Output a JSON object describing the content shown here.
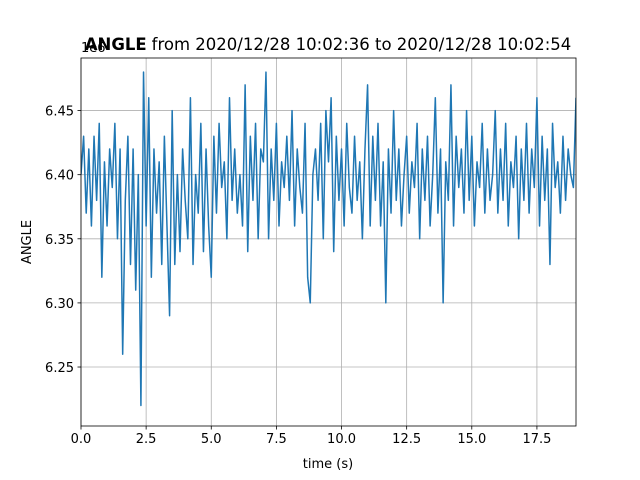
{
  "chart_data": {
    "type": "line",
    "title": "ANGLE",
    "title_suffix": "from 2020/12/28 10:02:36 to 2020/12/28 10:02:54",
    "y_offset_label": "1e6",
    "x_label": "time (s)",
    "y_label": "ANGLE",
    "color": "#1f77b4",
    "grid": true,
    "xlim": [
      0,
      19
    ],
    "ylim": [
      6.204,
      6.491
    ],
    "xticks": [
      {
        "value": 0,
        "label": "0.0"
      },
      2.5,
      {
        "value": 5,
        "label": "5.0"
      },
      7.5,
      {
        "value": 10,
        "label": "10.0"
      },
      12.5,
      {
        "value": 15,
        "label": "15.0"
      },
      17.5
    ],
    "yticks": [
      6.25,
      {
        "value": 6.3,
        "label": "6.30"
      },
      6.35,
      {
        "value": 6.4,
        "label": "6.40"
      },
      6.45
    ],
    "x": [
      0,
      0.1,
      0.2,
      0.3,
      0.4,
      0.5,
      0.6,
      0.7,
      0.8,
      0.9,
      1,
      1.1,
      1.2,
      1.3,
      1.4,
      1.5,
      1.6,
      1.7,
      1.8,
      1.9,
      2,
      2.1,
      2.2,
      2.3,
      2.4,
      2.5,
      2.6,
      2.7,
      2.8,
      2.9,
      3,
      3.1,
      3.2,
      3.3,
      3.4,
      3.5,
      3.6,
      3.7,
      3.8,
      3.9,
      4,
      4.1,
      4.2,
      4.3,
      4.4,
      4.5,
      4.6,
      4.7,
      4.8,
      4.9,
      5,
      5.1,
      5.2,
      5.3,
      5.4,
      5.5,
      5.6,
      5.7,
      5.8,
      5.9,
      6,
      6.1,
      6.2,
      6.3,
      6.4,
      6.5,
      6.6,
      6.7,
      6.8,
      6.9,
      7,
      7.1,
      7.2,
      7.3,
      7.4,
      7.5,
      7.6,
      7.7,
      7.8,
      7.9,
      8,
      8.1,
      8.2,
      8.3,
      8.4,
      8.5,
      8.6,
      8.7,
      8.8,
      8.9,
      9,
      9.1,
      9.2,
      9.3,
      9.4,
      9.5,
      9.6,
      9.7,
      9.8,
      9.9,
      10,
      10.1,
      10.2,
      10.3,
      10.4,
      10.5,
      10.6,
      10.7,
      10.8,
      10.9,
      11,
      11.1,
      11.2,
      11.3,
      11.4,
      11.5,
      11.6,
      11.7,
      11.8,
      11.9,
      12,
      12.1,
      12.2,
      12.3,
      12.4,
      12.5,
      12.6,
      12.7,
      12.8,
      12.9,
      13,
      13.1,
      13.2,
      13.3,
      13.4,
      13.5,
      13.6,
      13.7,
      13.8,
      13.9,
      14,
      14.1,
      14.2,
      14.3,
      14.4,
      14.5,
      14.6,
      14.7,
      14.8,
      14.9,
      15,
      15.1,
      15.2,
      15.3,
      15.4,
      15.5,
      15.6,
      15.7,
      15.8,
      15.9,
      16,
      16.1,
      16.2,
      16.3,
      16.4,
      16.5,
      16.6,
      16.7,
      16.8,
      16.9,
      17,
      17.1,
      17.2,
      17.3,
      17.4,
      17.5,
      17.6,
      17.7,
      17.8,
      17.9,
      18,
      18.1,
      18.2,
      18.3,
      18.4,
      18.5,
      18.6,
      18.7,
      18.8,
      18.9,
      19
    ],
    "values": [
      6.4,
      6.43,
      6.37,
      6.42,
      6.36,
      6.43,
      6.38,
      6.44,
      6.32,
      6.41,
      6.36,
      6.42,
      6.39,
      6.44,
      6.35,
      6.42,
      6.26,
      6.38,
      6.43,
      6.33,
      6.42,
      6.31,
      6.4,
      6.22,
      6.48,
      6.36,
      6.46,
      6.32,
      6.42,
      6.37,
      6.41,
      6.33,
      6.43,
      6.36,
      6.29,
      6.45,
      6.33,
      6.4,
      6.34,
      6.42,
      6.38,
      6.35,
      6.46,
      6.33,
      6.4,
      6.37,
      6.44,
      6.34,
      6.42,
      6.36,
      6.32,
      6.43,
      6.37,
      6.44,
      6.39,
      6.41,
      6.35,
      6.46,
      6.38,
      6.42,
      6.37,
      6.4,
      6.36,
      6.47,
      6.34,
      6.43,
      6.38,
      6.44,
      6.35,
      6.42,
      6.41,
      6.48,
      6.35,
      6.42,
      6.38,
      6.44,
      6.36,
      6.41,
      6.39,
      6.43,
      6.38,
      6.45,
      6.36,
      6.42,
      6.39,
      6.37,
      6.44,
      6.32,
      6.3,
      6.4,
      6.42,
      6.38,
      6.44,
      6.35,
      6.45,
      6.41,
      6.46,
      6.34,
      6.43,
      6.38,
      6.42,
      6.36,
      6.44,
      6.39,
      6.37,
      6.43,
      6.38,
      6.41,
      6.35,
      6.42,
      6.47,
      6.36,
      6.43,
      6.38,
      6.44,
      6.36,
      6.41,
      6.3,
      6.42,
      6.37,
      6.45,
      6.38,
      6.42,
      6.36,
      6.4,
      6.43,
      6.37,
      6.41,
      6.39,
      6.44,
      6.35,
      6.42,
      6.38,
      6.43,
      6.36,
      6.4,
      6.46,
      6.37,
      6.42,
      6.3,
      6.41,
      6.38,
      6.47,
      6.36,
      6.43,
      6.39,
      6.42,
      6.37,
      6.45,
      6.38,
      6.43,
      6.36,
      6.41,
      6.39,
      6.44,
      6.37,
      6.42,
      6.38,
      6.4,
      6.45,
      6.37,
      6.42,
      6.38,
      6.44,
      6.36,
      6.41,
      6.39,
      6.43,
      6.35,
      6.42,
      6.38,
      6.44,
      6.37,
      6.42,
      6.39,
      6.46,
      6.36,
      6.43,
      6.38,
      6.42,
      6.33,
      6.44,
      6.39,
      6.41,
      6.37,
      6.43,
      6.38,
      6.42,
      6.4,
      6.39,
      6.46
    ]
  }
}
